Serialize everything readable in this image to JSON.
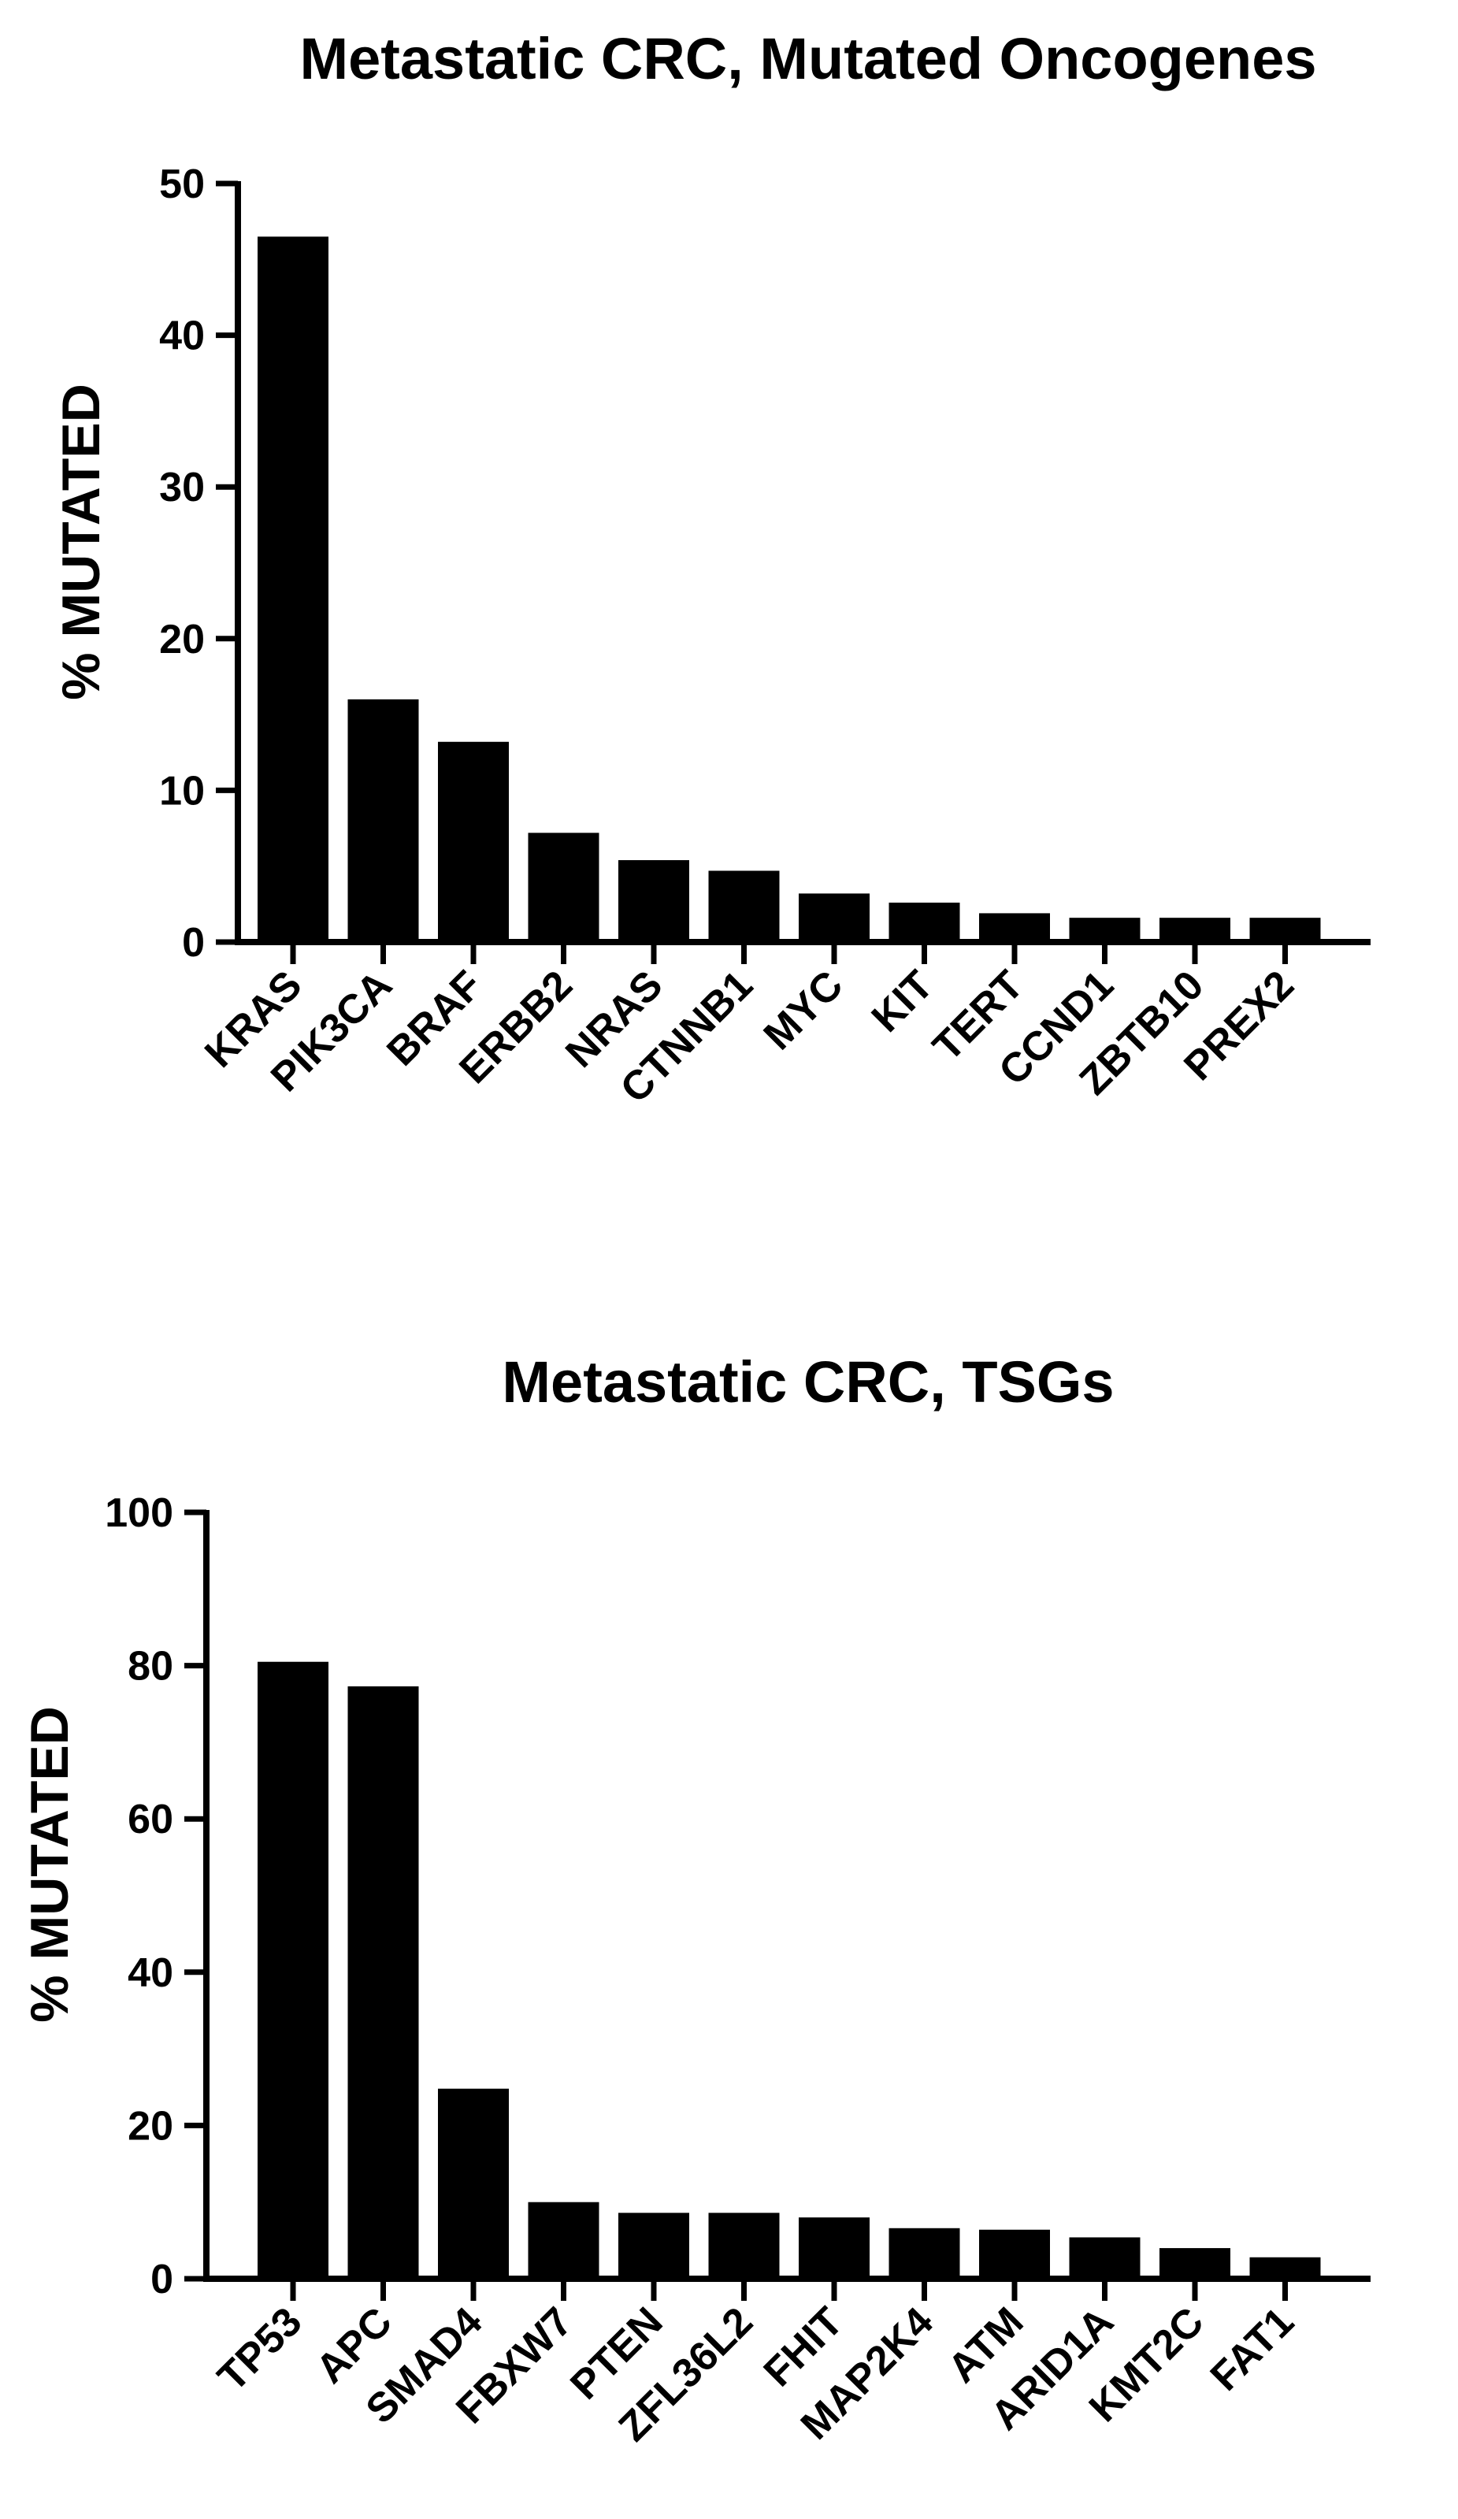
{
  "chart_data": [
    {
      "type": "bar",
      "title": "Metastatic CRC, Mutated Oncogenes",
      "xlabel": "",
      "ylabel": "% MUTATED",
      "ylim": [
        0,
        50
      ],
      "yticks": [
        0,
        10,
        20,
        30,
        40,
        50
      ],
      "categories": [
        "KRAS",
        "PIK3CA",
        "BRAF",
        "ERBB2",
        "NRAS",
        "CTNNB1",
        "MYC",
        "KIT",
        "TERT",
        "CCND1",
        "ZBTB10",
        "PREX2"
      ],
      "values": [
        46.5,
        16.0,
        13.2,
        7.2,
        5.4,
        4.7,
        3.2,
        2.6,
        1.9,
        1.6,
        1.6,
        1.6
      ],
      "bar_color": "#000000",
      "grid": false,
      "legend": "none"
    },
    {
      "type": "bar",
      "title": "Metastatic CRC,  TSGs",
      "xlabel": "",
      "ylabel": "% MUTATED",
      "ylim": [
        0,
        100
      ],
      "yticks": [
        0,
        20,
        40,
        60,
        80,
        100
      ],
      "categories": [
        "TP53",
        "APC",
        "SMAD4",
        "FBXW7",
        "PTEN",
        "ZFL36L2",
        "FHIT",
        "MAP2K4",
        "ATM",
        "ARID1A",
        "KMT2C",
        "FAT1"
      ],
      "values": [
        80.5,
        77.3,
        24.8,
        10.0,
        8.6,
        8.6,
        8.0,
        6.6,
        6.4,
        5.4,
        4.0,
        2.8
      ],
      "bar_color": "#000000",
      "grid": false,
      "legend": "none"
    }
  ]
}
